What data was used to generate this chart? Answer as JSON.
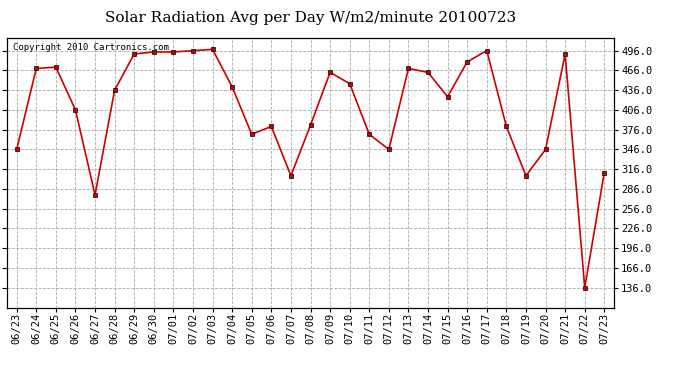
{
  "title": "Solar Radiation Avg per Day W/m2/minute 20100723",
  "copyright": "Copyright 2010 Cartronics.com",
  "dates": [
    "06/23",
    "06/24",
    "06/25",
    "06/26",
    "06/27",
    "06/28",
    "06/29",
    "06/30",
    "07/01",
    "07/02",
    "07/03",
    "07/04",
    "07/05",
    "07/06",
    "07/07",
    "07/08",
    "07/09",
    "07/10",
    "07/11",
    "07/12",
    "07/13",
    "07/14",
    "07/15",
    "07/16",
    "07/17",
    "07/18",
    "07/19",
    "07/20",
    "07/21",
    "07/22",
    "07/23"
  ],
  "values": [
    346,
    469,
    471,
    406,
    277,
    436,
    491,
    494,
    494,
    496,
    498,
    441,
    369,
    381,
    306,
    383,
    463,
    446,
    369,
    346,
    469,
    463,
    426,
    479,
    496,
    381,
    306,
    346,
    491,
    136,
    311
  ],
  "line_color": "#cc0000",
  "marker_color": "#cc0000",
  "bg_color": "#ffffff",
  "grid_color": "#aaaaaa",
  "ylim_min": 106,
  "ylim_max": 516,
  "ytick_start": 136,
  "ytick_step": 30,
  "title_fontsize": 11,
  "copyright_fontsize": 6.5,
  "tick_fontsize": 7.5
}
